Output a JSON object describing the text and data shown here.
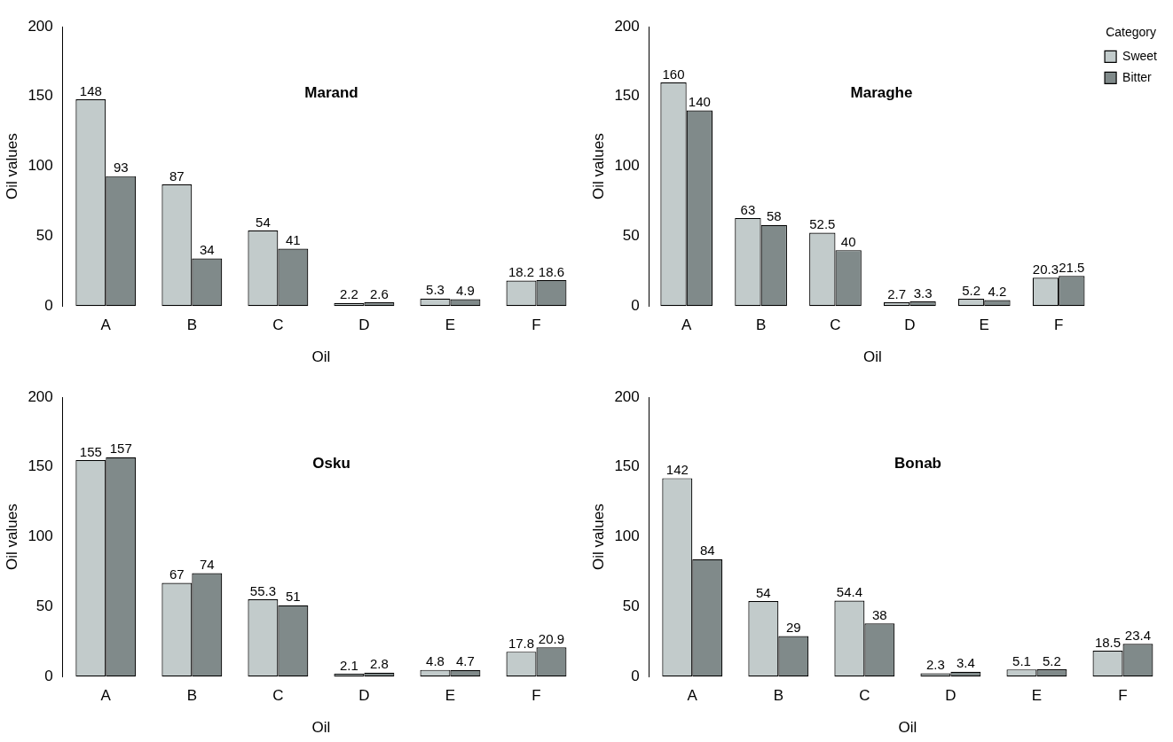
{
  "chart_data": [
    {
      "type": "bar",
      "title": "Marand",
      "xlabel": "Oil",
      "ylabel": "Oil values",
      "categories": [
        "A",
        "B",
        "C",
        "D",
        "E",
        "F"
      ],
      "series": [
        {
          "color": "#c2cbcb",
          "values": [
            148,
            87,
            54,
            2.2,
            5.3,
            18.2
          ]
        },
        {
          "color": "#808a8a",
          "values": [
            93,
            34,
            41,
            2.6,
            4.9,
            18.6
          ]
        }
      ],
      "ylim": [
        0,
        200
      ],
      "yticks": [
        0,
        50,
        100,
        150,
        200
      ],
      "data_labels": true,
      "legend": false
    },
    {
      "type": "bar",
      "title": "Maraghe",
      "xlabel": "Oil",
      "ylabel": "Oil values",
      "categories": [
        "A",
        "B",
        "C",
        "D",
        "E",
        "F"
      ],
      "series": [
        {
          "name": "Sweet",
          "color": "#c2cbcb",
          "values": [
            160,
            63,
            52.5,
            2.7,
            5.2,
            20.3
          ]
        },
        {
          "name": "Bitter",
          "color": "#808a8a",
          "values": [
            140,
            58,
            40,
            3.3,
            4.2,
            21.5
          ]
        }
      ],
      "ylim": [
        0,
        200
      ],
      "yticks": [
        0,
        50,
        100,
        150,
        200
      ],
      "data_labels": true,
      "legend": "top right",
      "legend_title": "Category"
    },
    {
      "type": "bar",
      "title": "Osku",
      "xlabel": "Oil",
      "ylabel": "Oil values",
      "categories": [
        "A",
        "B",
        "C",
        "D",
        "E",
        "F"
      ],
      "series": [
        {
          "color": "#c2cbcb",
          "values": [
            155,
            67,
            55.3,
            2.1,
            4.8,
            17.8
          ]
        },
        {
          "color": "#808a8a",
          "values": [
            157,
            74,
            51,
            2.8,
            4.7,
            20.9
          ]
        }
      ],
      "ylim": [
        0,
        200
      ],
      "yticks": [
        0,
        50,
        100,
        150,
        200
      ],
      "data_labels": true,
      "legend": false
    },
    {
      "type": "bar",
      "title": "Bonab",
      "xlabel": "Oil",
      "ylabel": "Oil values",
      "categories": [
        "A",
        "B",
        "C",
        "D",
        "E",
        "F"
      ],
      "series": [
        {
          "color": "#c2cbcb",
          "values": [
            142,
            54,
            54.4,
            2.3,
            5.1,
            18.5
          ]
        },
        {
          "color": "#808a8a",
          "values": [
            84,
            29,
            38,
            3.4,
            5.2,
            23.4
          ]
        }
      ],
      "ylim": [
        0,
        200
      ],
      "yticks": [
        0,
        50,
        100,
        150,
        200
      ],
      "data_labels": true,
      "legend": false
    }
  ]
}
